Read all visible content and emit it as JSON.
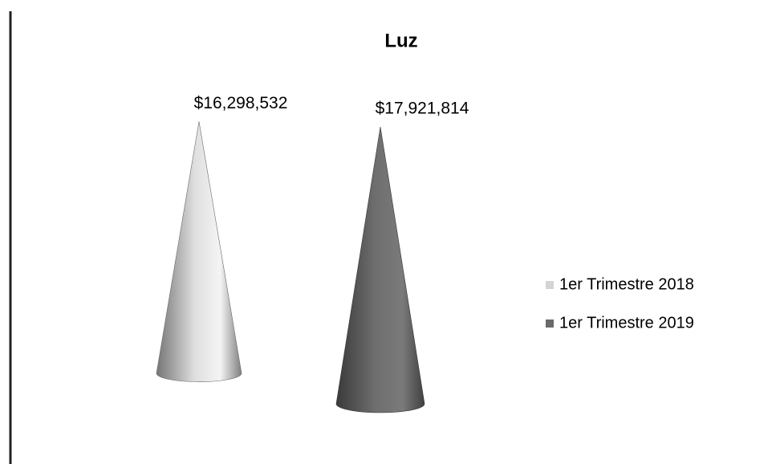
{
  "chart_data": {
    "type": "cone",
    "title": "Luz",
    "categories": [
      null
    ],
    "series": [
      {
        "name": "1er Trimestre 2018",
        "color": "#d4d4d4",
        "values": [
          16298532
        ],
        "value_labels": [
          "$16,298,532"
        ]
      },
      {
        "name": "1er Trimestre 2019",
        "color": "#6a6a6a",
        "values": [
          17921814
        ],
        "value_labels": [
          "$17,921,814"
        ]
      }
    ],
    "legend": "right"
  }
}
